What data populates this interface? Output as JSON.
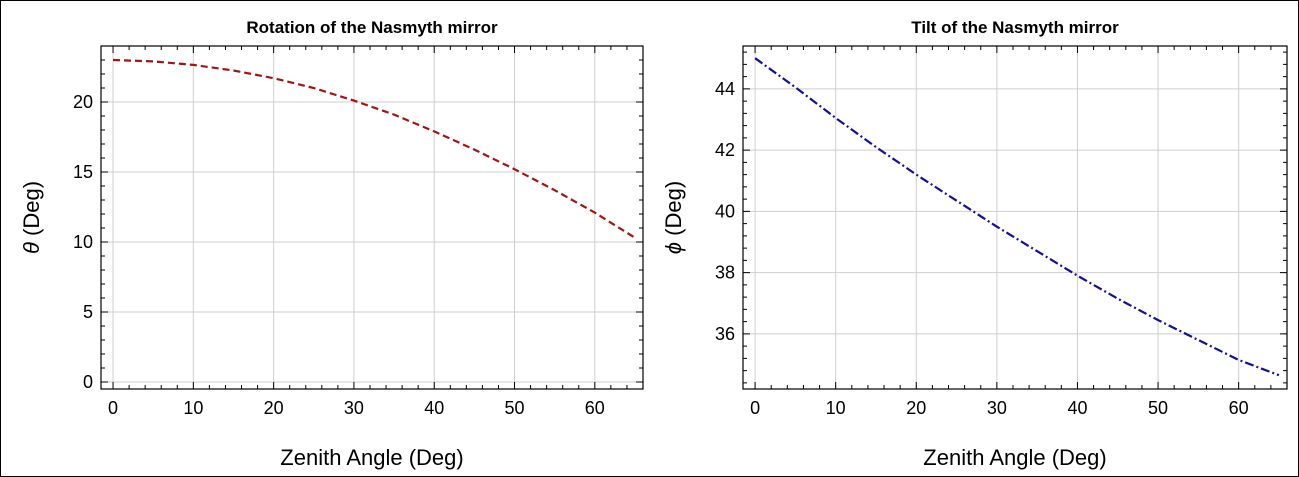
{
  "chart_data": [
    {
      "type": "line",
      "title": "Rotation of the Nasmyth mirror",
      "xlabel": "Zenith Angle (Deg)",
      "ylabel_symbol": "θ",
      "ylabel_rest": " (Deg)",
      "xlim": [
        -1.5,
        66
      ],
      "ylim": [
        -0.5,
        24
      ],
      "xticks": [
        0,
        10,
        20,
        30,
        40,
        50,
        60
      ],
      "yticks": [
        0,
        5,
        10,
        15,
        20
      ],
      "grid": true,
      "line_color": "#a51414",
      "line_style": "dashed",
      "series": [
        {
          "x": [
            0,
            5,
            10,
            15,
            20,
            25,
            30,
            35,
            40,
            45,
            50,
            55,
            60,
            65
          ],
          "y": [
            23.0,
            22.9,
            22.65,
            22.25,
            21.7,
            21.0,
            20.1,
            19.1,
            17.9,
            16.6,
            15.2,
            13.7,
            12.1,
            10.3
          ]
        }
      ]
    },
    {
      "type": "line",
      "title": "Tilt of the Nasmyth mirror",
      "xlabel": "Zenith Angle (Deg)",
      "ylabel_symbol": "ϕ",
      "ylabel_rest": " (Deg)",
      "xlim": [
        -1.5,
        66
      ],
      "ylim": [
        34.2,
        45.4
      ],
      "xticks": [
        0,
        10,
        20,
        30,
        40,
        50,
        60
      ],
      "yticks": [
        36,
        38,
        40,
        42,
        44
      ],
      "grid": true,
      "line_color": "#10109a",
      "line_style": "dashdot",
      "series": [
        {
          "x": [
            0,
            5,
            10,
            15,
            20,
            25,
            30,
            35,
            40,
            45,
            50,
            55,
            60,
            65
          ],
          "y": [
            45.0,
            44.05,
            43.05,
            42.1,
            41.2,
            40.35,
            39.5,
            38.7,
            37.9,
            37.15,
            36.45,
            35.8,
            35.15,
            34.65
          ]
        }
      ]
    }
  ]
}
